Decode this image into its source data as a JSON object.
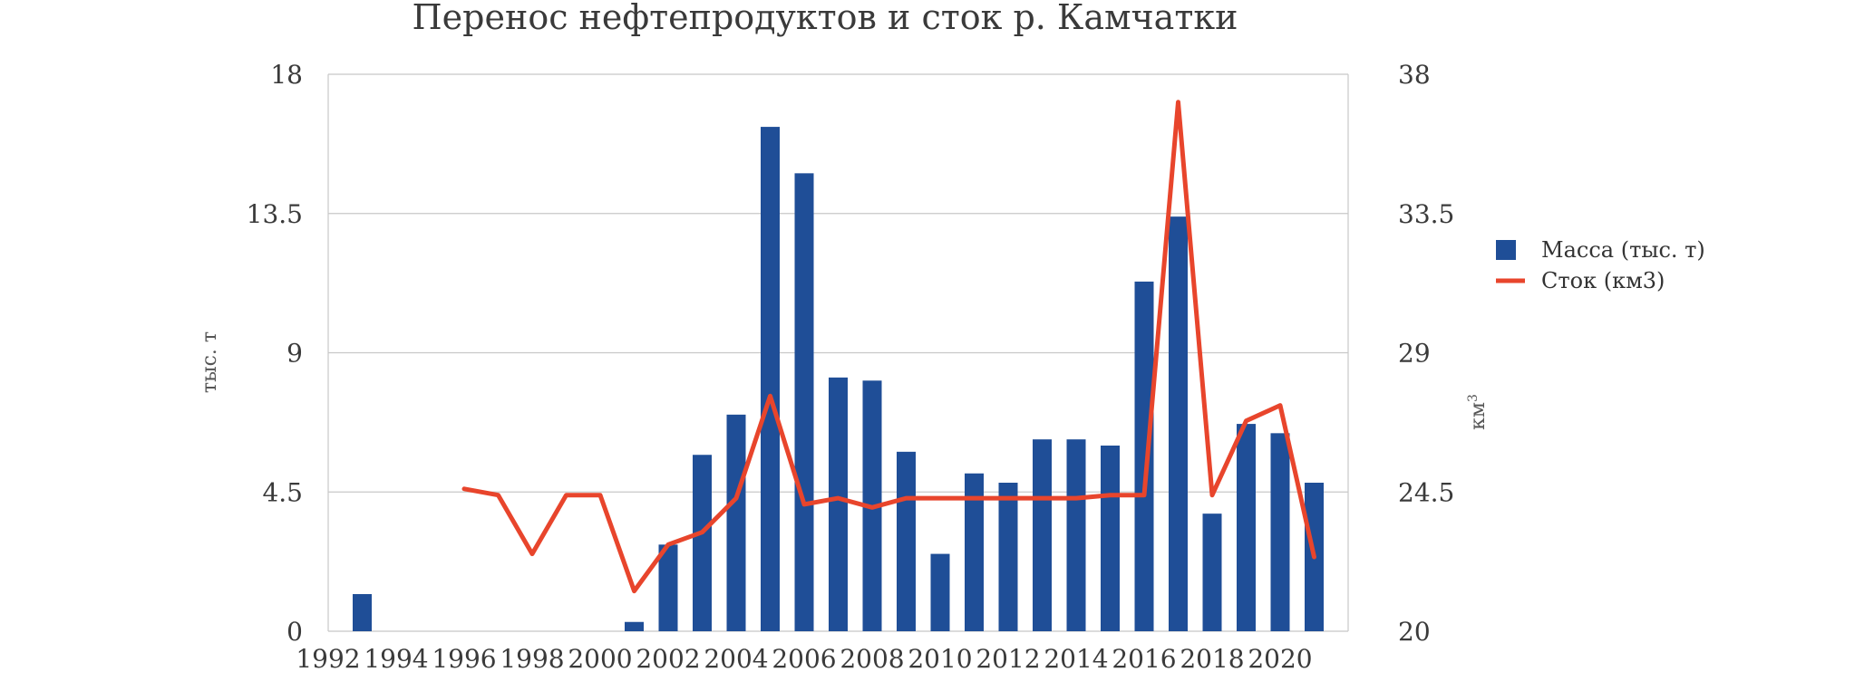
{
  "colors": {
    "bar": "#1f4e97",
    "line": "#e8452c",
    "line_alt": "#5e3a6e",
    "grid": "#c8c8c8"
  },
  "chart_data": {
    "type": "bar",
    "title": "Перенос нефтепродуктов и сток р. Камчатки",
    "ylabel": "тыс. т",
    "y2label": "км",
    "y2label_sup": "3",
    "ylim": [
      0,
      18
    ],
    "y2lim": [
      20,
      38
    ],
    "yticks": [
      "0",
      "4.5",
      "9",
      "13.5",
      "18"
    ],
    "y2ticks": [
      "20",
      "24.5",
      "29",
      "33.5",
      "38"
    ],
    "xticks": [
      "1992",
      "1994",
      "1996",
      "1998",
      "2000",
      "2002",
      "2004",
      "2006",
      "2008",
      "2010",
      "2012",
      "2014",
      "2016",
      "2018",
      "2020"
    ],
    "grid": true,
    "legend_position": "right",
    "x": [
      1993,
      2001,
      2002,
      2003,
      2004,
      2005,
      2006,
      2007,
      2008,
      2009,
      2010,
      2011,
      2012,
      2013,
      2014,
      2015,
      2016,
      2017,
      2018,
      2019,
      2020,
      2021
    ],
    "series": [
      {
        "name": "Масса (тыс. т)",
        "kind": "bar",
        "axis": "left",
        "values": [
          1.2,
          0.3,
          2.8,
          5.7,
          7.0,
          16.3,
          14.8,
          8.2,
          8.1,
          5.8,
          2.5,
          5.1,
          4.8,
          6.2,
          6.2,
          6.0,
          11.3,
          13.4,
          3.8,
          6.7,
          6.4,
          4.8
        ]
      },
      {
        "name": "Сток (км3)",
        "kind": "line",
        "axis": "right",
        "x": [
          1996,
          1997,
          1998,
          1999,
          2000,
          2001,
          2002,
          2003,
          2004,
          2005,
          2006,
          2007,
          2008,
          2009,
          2010,
          2011,
          2012,
          2013,
          2014,
          2015,
          2016,
          2017,
          2018,
          2019,
          2020,
          2021
        ],
        "values": [
          24.6,
          24.4,
          22.5,
          24.4,
          24.4,
          21.3,
          22.8,
          23.2,
          24.3,
          27.6,
          24.1,
          24.3,
          24.0,
          24.3,
          24.3,
          24.3,
          24.3,
          24.3,
          24.3,
          24.4,
          24.4,
          37.1,
          24.4,
          26.8,
          27.3,
          22.4
        ]
      }
    ]
  }
}
